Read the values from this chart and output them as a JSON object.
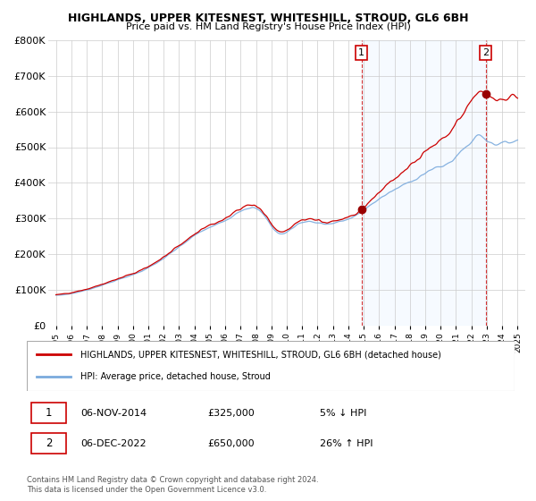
{
  "title": "HIGHLANDS, UPPER KITESNEST, WHITESHILL, STROUD, GL6 6BH",
  "subtitle": "Price paid vs. HM Land Registry's House Price Index (HPI)",
  "legend_line1": "HIGHLANDS, UPPER KITESNEST, WHITESHILL, STROUD, GL6 6BH (detached house)",
  "legend_line2": "HPI: Average price, detached house, Stroud",
  "sale1_date_label": "06-NOV-2014",
  "sale1_price_label": "£325,000",
  "sale1_hpi_label": "5% ↓ HPI",
  "sale1_year": 2014.85,
  "sale1_price": 325000,
  "sale2_date_label": "06-DEC-2022",
  "sale2_price_label": "£650,000",
  "sale2_hpi_label": "26% ↑ HPI",
  "sale2_year": 2022.92,
  "sale2_price": 650000,
  "footer1": "Contains HM Land Registry data © Crown copyright and database right 2024.",
  "footer2": "This data is licensed under the Open Government Licence v3.0.",
  "ylim": [
    0,
    800000
  ],
  "property_color": "#cc0000",
  "hpi_color": "#7aaadd",
  "shade_color": "#ddeeff",
  "background_color": "#ffffff",
  "grid_color": "#cccccc"
}
